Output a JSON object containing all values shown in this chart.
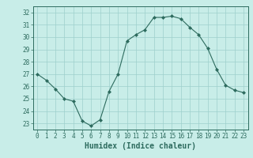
{
  "x": [
    0,
    1,
    2,
    3,
    4,
    5,
    6,
    7,
    8,
    9,
    10,
    11,
    12,
    13,
    14,
    15,
    16,
    17,
    18,
    19,
    20,
    21,
    22,
    23
  ],
  "y": [
    27.0,
    26.5,
    25.8,
    25.0,
    24.8,
    23.2,
    22.8,
    23.3,
    25.6,
    27.0,
    29.7,
    30.2,
    30.6,
    31.6,
    31.6,
    31.7,
    31.5,
    30.8,
    30.2,
    29.1,
    27.4,
    26.1,
    25.7,
    25.5
  ],
  "line_color": "#2d6b5e",
  "marker": "D",
  "marker_size": 2.0,
  "bg_color": "#c8ede8",
  "grid_color": "#9ed0cc",
  "xlabel": "Humidex (Indice chaleur)",
  "ylim": [
    22.5,
    32.5
  ],
  "yticks": [
    23,
    24,
    25,
    26,
    27,
    28,
    29,
    30,
    31,
    32
  ],
  "xticks": [
    0,
    1,
    2,
    3,
    4,
    5,
    6,
    7,
    8,
    9,
    10,
    11,
    12,
    13,
    14,
    15,
    16,
    17,
    18,
    19,
    20,
    21,
    22,
    23
  ],
  "xlabel_color": "#2d6b5e",
  "tick_color": "#2d6b5e",
  "axis_color": "#2d6b5e",
  "tick_fontsize": 5.5,
  "xlabel_fontsize": 7.0
}
